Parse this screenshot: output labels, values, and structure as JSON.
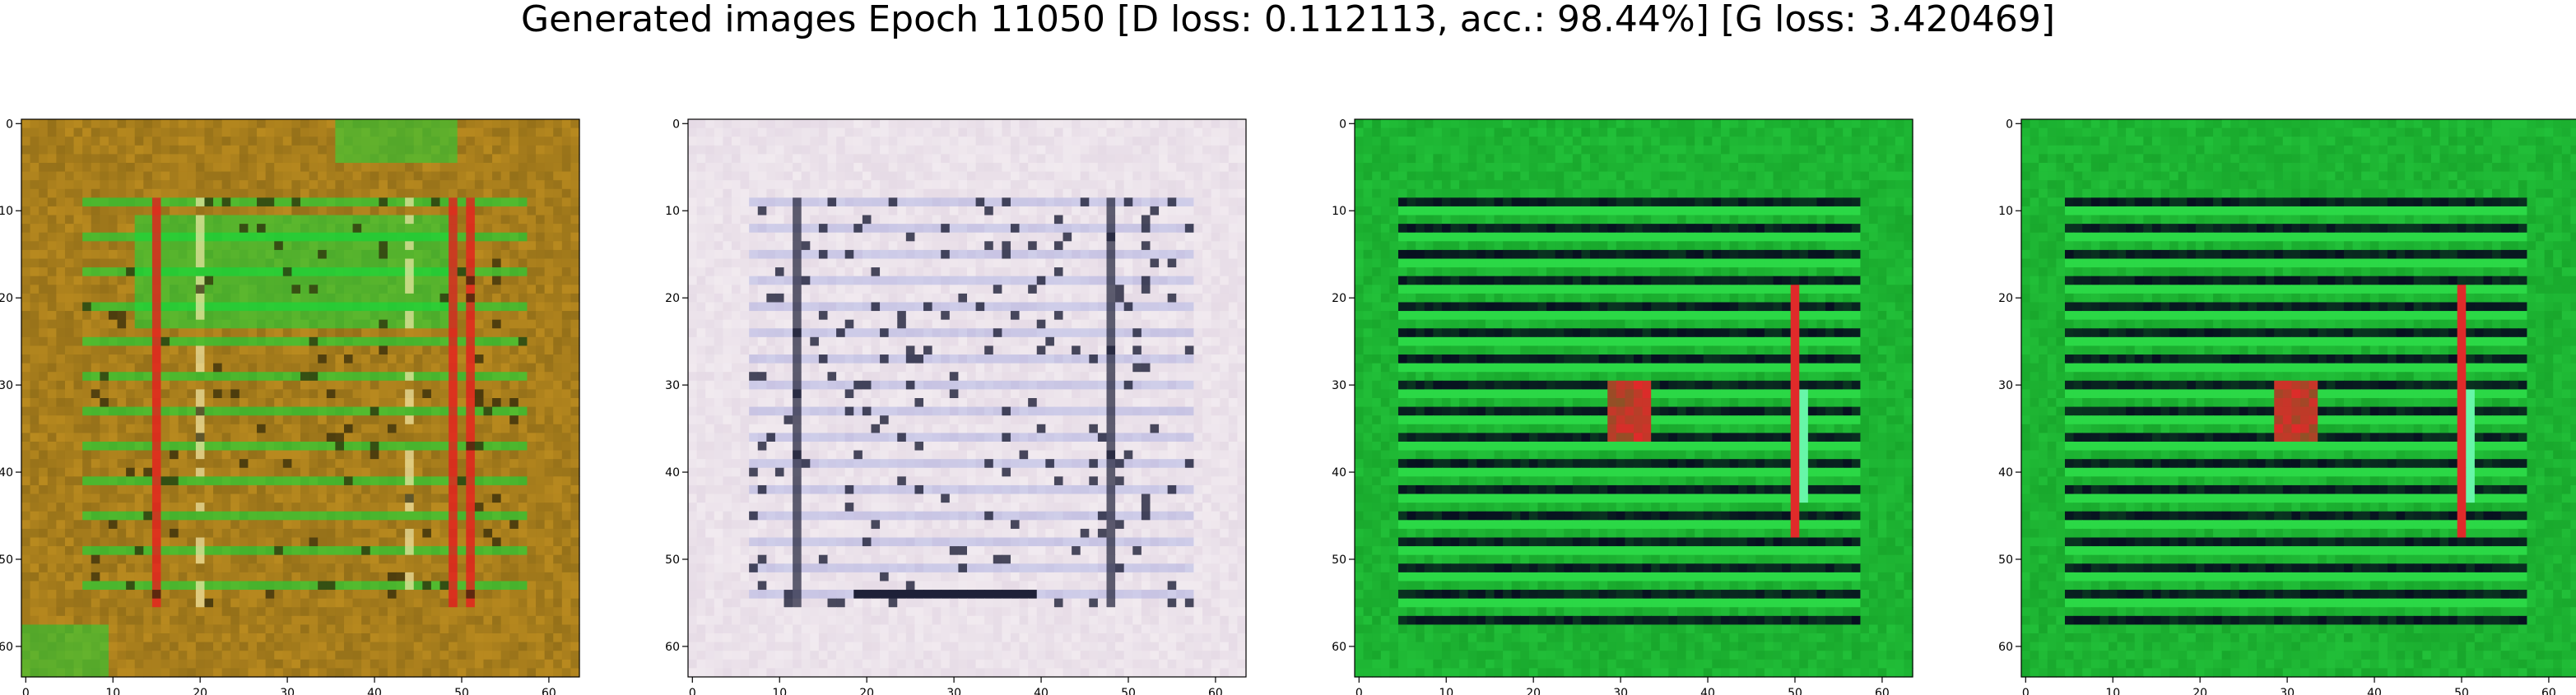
{
  "title": "Generated images Epoch 11050 [D loss: 0.112113, acc.: 98.44%] [G loss: 3.420469]",
  "axis": {
    "x_ticks": [
      "0",
      "10",
      "20",
      "30",
      "40",
      "50",
      "60"
    ],
    "y_ticks": [
      "0",
      "10",
      "20",
      "30",
      "40",
      "50",
      "60"
    ]
  },
  "panels": [
    {
      "name": "image-1",
      "palette": {
        "bg": "#b98a1f",
        "band": "#0fdc3a",
        "dark": "#2a2408",
        "accent": "#e61e1e",
        "highlight": "#f3e9a8"
      }
    },
    {
      "name": "image-2",
      "palette": {
        "bg": "#e6dbe6",
        "band": "#f4eef2",
        "dark": "#1e2038",
        "accent": "#6a7ad8",
        "highlight": "#ffffff"
      }
    },
    {
      "name": "image-3",
      "palette": {
        "bg": "#0f8f1f",
        "band": "#2ee04a",
        "dark": "#070f20",
        "accent": "#e02a2a",
        "highlight": "#7fffd0"
      }
    },
    {
      "name": "image-4",
      "palette": {
        "bg": "#0f8f1f",
        "band": "#2ee04a",
        "dark": "#070f20",
        "accent": "#e02a2a",
        "highlight": "#7fffd0"
      }
    }
  ]
}
